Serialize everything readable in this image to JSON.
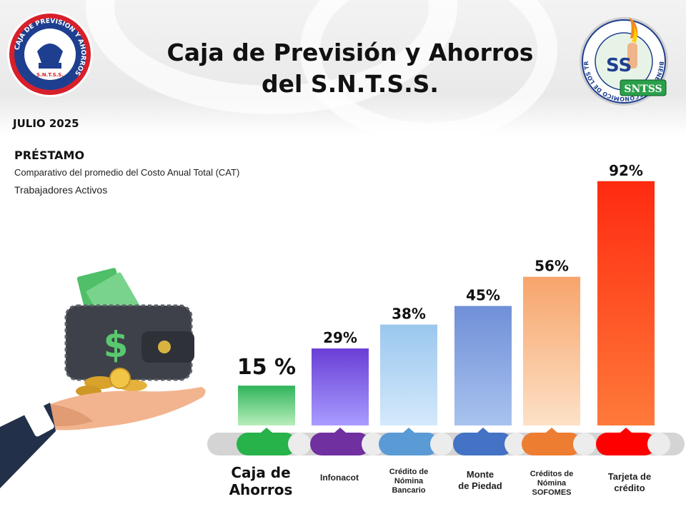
{
  "header": {
    "title_line1": "Caja de Previsión y Ahorros",
    "title_line2": "del S.N.T.S.S.",
    "date": "JULIO 2025"
  },
  "logo_left": {
    "ring_text": "CAJA DE PREVISION Y AHORROS",
    "bottom_text": "S.N.T.S.S."
  },
  "logo_right": {
    "ring_text": "BIENESTAR ECONOMICO DE LOS TRABAJADORES",
    "letters": "SS",
    "badge": "SNTSS"
  },
  "section": {
    "heading": "PRÉSTAMO",
    "subtitle": "Comparativo del promedio del Costo Anual Total (CAT)",
    "group": "Trabajadores Activos"
  },
  "labels": {
    "caja_line1": "Caja de",
    "caja_line2": "Ahorros",
    "infonacot": "Infonacot",
    "bancario_line1": "Crédito de",
    "bancario_line2": "Nómina",
    "bancario_line3": "Bancario",
    "monte_line1": "Monte",
    "monte_line2": "de Piedad",
    "sofomes_line1": "Créditos de",
    "sofomes_line2": "Nómina",
    "sofomes_line3": "SOFOMES",
    "tarjeta_line1": "Tarjeta de",
    "tarjeta_line2": "crédito"
  },
  "illustration": {
    "currency_symbol": "$"
  },
  "chart_data": {
    "type": "bar",
    "categories": [
      "Caja de Ahorros",
      "Infonacot",
      "Crédito de Nómina Bancario",
      "Monte de Piedad",
      "Créditos de Nómina SOFOMES",
      "Tarjeta de crédito"
    ],
    "values": [
      15,
      29,
      38,
      45,
      56,
      92
    ],
    "value_labels": [
      "15 %",
      "29%",
      "38%",
      "45%",
      "56%",
      "92%"
    ],
    "unit": "%",
    "ylim": [
      0,
      100
    ],
    "grid": false,
    "legend": "none",
    "colors": {
      "bar_top": [
        "#b8eebb",
        "#a89cff",
        "#d4e9fb",
        "#a9c3ee",
        "#fde1c7",
        "#ff7a3a"
      ],
      "bar_bottom": [
        "#2fb45a",
        "#6a3ed6",
        "#9bc7ee",
        "#6f8fd8",
        "#f7a46a",
        "#ff2a10"
      ],
      "pill": [
        "#27b24a",
        "#7030a0",
        "#5b9bd5",
        "#4472c4",
        "#ed7d31",
        "#ff0000"
      ],
      "track": "#d4d4d4"
    }
  }
}
